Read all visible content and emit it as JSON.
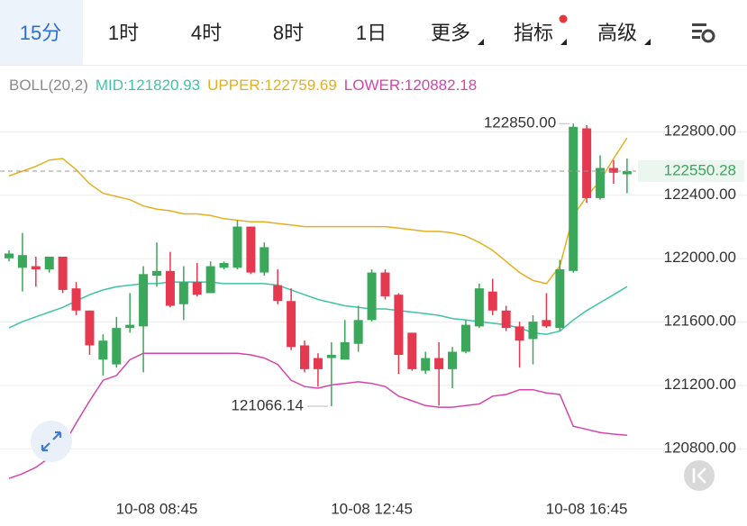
{
  "tabs": [
    {
      "label": "15分",
      "active": true
    },
    {
      "label": "1时"
    },
    {
      "label": "4时"
    },
    {
      "label": "8时"
    },
    {
      "label": "1日"
    },
    {
      "label": "更多",
      "dropdown": true
    },
    {
      "label": "指标",
      "dropdown": true,
      "badge": true
    },
    {
      "label": "高级",
      "dropdown": true
    }
  ],
  "chart_data": {
    "type": "candlestick",
    "indicator": "BOLL(20,2)",
    "categories": [
      null,
      null,
      null,
      null,
      null,
      null,
      null,
      null,
      null,
      null,
      null,
      "10-08 08:45",
      null,
      null,
      null,
      null,
      null,
      null,
      null,
      null,
      null,
      null,
      null,
      null,
      null,
      null,
      null,
      "10-08 12:45",
      null,
      null,
      null,
      null,
      null,
      null,
      null,
      null,
      null,
      null,
      null,
      null,
      null,
      null,
      null,
      "10-08 16:45",
      null,
      null,
      null
    ],
    "open": [
      122000,
      121940,
      121950,
      121930,
      122010,
      121810,
      121670,
      121360,
      121330,
      121560,
      121570,
      121890,
      121920,
      121710,
      121850,
      121780,
      121940,
      121940,
      122200,
      121910,
      121830,
      121730,
      121450,
      121370,
      121370,
      121360,
      121460,
      121610,
      121910,
      121770,
      121530,
      121290,
      121370,
      121300,
      121410,
      121570,
      121790,
      121670,
      121570,
      121490,
      121610,
      121560,
      121920,
      122820,
      122380,
      122570,
      122530
    ],
    "high": [
      122050,
      122160,
      122010,
      122010,
      122010,
      121850,
      121670,
      121520,
      121630,
      121780,
      121950,
      122100,
      122040,
      121950,
      121970,
      121980,
      121980,
      122240,
      122200,
      122100,
      121930,
      121810,
      121480,
      121400,
      121470,
      121610,
      121700,
      121930,
      121930,
      121780,
      121530,
      121410,
      121470,
      121440,
      121610,
      121840,
      121870,
      121700,
      121600,
      121640,
      121780,
      121990,
      122850,
      122840,
      122650,
      122620,
      122630
    ],
    "low": [
      121980,
      121790,
      121820,
      121910,
      121780,
      121640,
      121390,
      121260,
      121310,
      121530,
      121280,
      121820,
      121690,
      121610,
      121760,
      121780,
      121930,
      121930,
      121900,
      121890,
      121710,
      121420,
      121280,
      121190,
      121066.14,
      121360,
      121410,
      121600,
      121740,
      121270,
      121290,
      121270,
      121070,
      121180,
      121400,
      121560,
      121640,
      121540,
      121310,
      121330,
      121560,
      121540,
      121910,
      122350,
      122370,
      122470,
      122410
    ],
    "close": [
      122030,
      122020,
      121930,
      122010,
      121800,
      121670,
      121450,
      121480,
      121560,
      121580,
      121900,
      121920,
      121700,
      121850,
      121770,
      121950,
      121970,
      122200,
      121910,
      122070,
      121730,
      121440,
      121300,
      121300,
      121390,
      121470,
      121610,
      121910,
      121760,
      121390,
      121300,
      121370,
      121300,
      121410,
      121580,
      121810,
      121670,
      121560,
      121480,
      121600,
      121570,
      121930,
      122830,
      122380,
      122570,
      122540,
      122550.28
    ],
    "up_color": "#3aa75a",
    "down_color": "#e4394f",
    "series": [
      {
        "name": "MID:121820.93",
        "color": "#3fc4a6",
        "values": [
          121560,
          121600,
          121630,
          121660,
          121690,
          121730,
          121770,
          121800,
          121820,
          121830,
          121840,
          121840,
          121850,
          121850,
          121850,
          121850,
          121840,
          121840,
          121840,
          121840,
          121830,
          121800,
          121770,
          121740,
          121720,
          121700,
          121690,
          121680,
          121680,
          121670,
          121660,
          121650,
          121640,
          121620,
          121610,
          121600,
          121590,
          121580,
          121560,
          121530,
          121520,
          121540,
          121610,
          121670,
          121720,
          121770,
          121820.93
        ]
      },
      {
        "name": "UPPER:122759.69",
        "color": "#e2b020",
        "values": [
          122520,
          122550,
          122580,
          122620,
          122630,
          122560,
          122470,
          122410,
          122390,
          122370,
          122330,
          122310,
          122300,
          122280,
          122280,
          122270,
          122250,
          122240,
          122230,
          122230,
          122220,
          122210,
          122200,
          122200,
          122200,
          122200,
          122200,
          122200,
          122200,
          122190,
          122180,
          122170,
          122170,
          122160,
          122140,
          122100,
          122050,
          121980,
          121910,
          121860,
          121840,
          121950,
          122270,
          122390,
          122490,
          122630,
          122759.69
        ]
      },
      {
        "name": "LOWER:120882.18",
        "color": "#d545a8",
        "values": [
          120610,
          120640,
          120680,
          120740,
          120810,
          120960,
          121100,
          121230,
          121260,
          121360,
          121400,
          121400,
          121400,
          121400,
          121400,
          121400,
          121400,
          121400,
          121390,
          121370,
          121330,
          121230,
          121190,
          121180,
          121200,
          121210,
          121220,
          121210,
          121190,
          121130,
          121100,
          121070,
          121060,
          121060,
          121070,
          121080,
          121130,
          121140,
          121170,
          121170,
          121150,
          121140,
          120940,
          120920,
          120900,
          120890,
          120882.18
        ]
      }
    ],
    "ylim": [
      120560,
      123005
    ],
    "yticks": [
      {
        "value": 122800,
        "label": "122800.00"
      },
      {
        "value": 122400,
        "label": "122400.00"
      },
      {
        "value": 122000,
        "label": "122000.00"
      },
      {
        "value": 121600,
        "label": "121600.00"
      },
      {
        "value": 121200,
        "label": "121200.00"
      },
      {
        "value": 120800,
        "label": "120800.00"
      }
    ],
    "last_price": 122550.28,
    "max_label": {
      "value": 122850,
      "label": "122850.00"
    },
    "min_label": 121066.14,
    "grid": true
  }
}
